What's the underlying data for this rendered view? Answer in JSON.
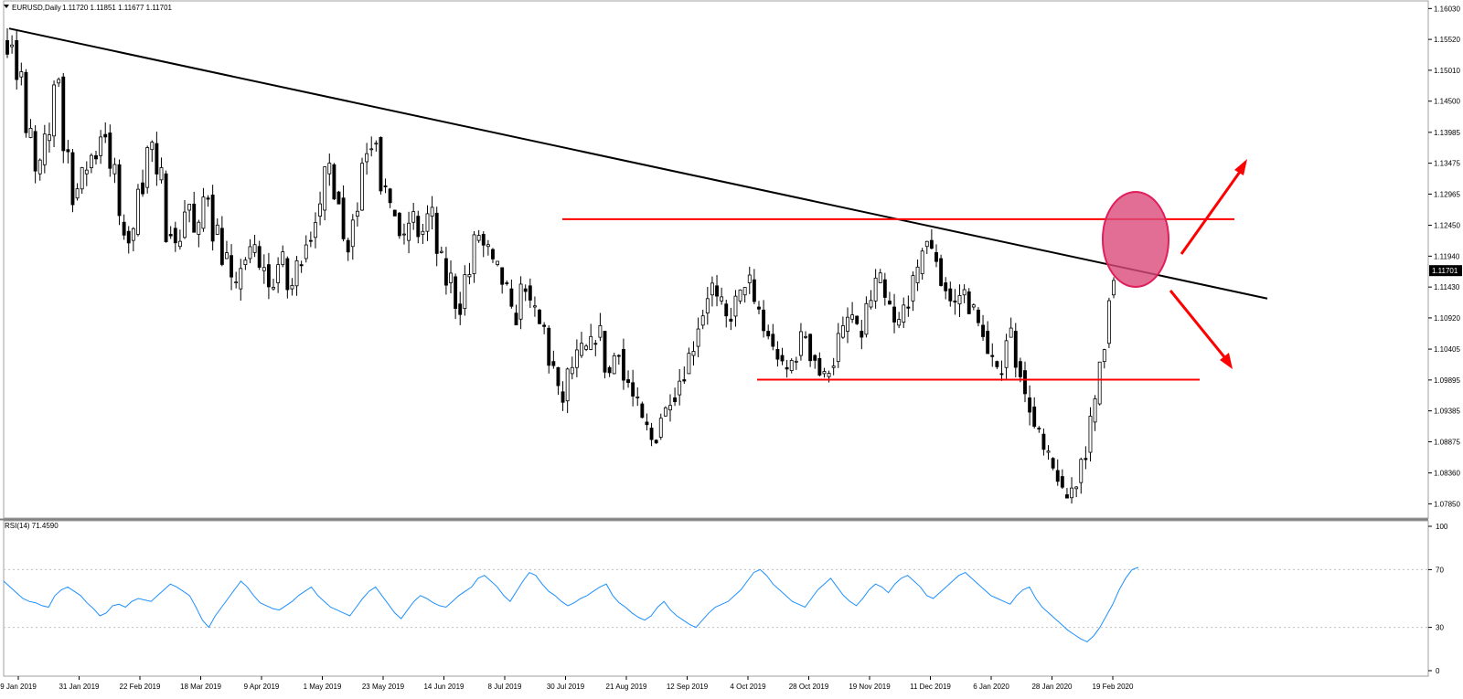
{
  "header": {
    "symbol": "EURUSD,Daily",
    "ohlc": "1.11720 1.11851 1.11677 1.11701"
  },
  "rsi_header": "RSI(14) 71.4590",
  "current_price_label": "1.11701",
  "colors": {
    "bull_candle": "#ffffff",
    "bear_candle": "#000000",
    "trendline": "#000000",
    "horizontal_lines": "#ff0000",
    "highlight_ellipse": "#dc4a7a",
    "arrows": "#ff0000",
    "rsi_line": "#1e90ff",
    "rsi_levels": "#c0c0c0"
  },
  "chart_data": [
    {
      "type": "candlestick",
      "x_tick_labels": [
        "9 Jan 2019",
        "31 Jan 2019",
        "22 Feb 2019",
        "18 Mar 2019",
        "9 Apr 2019",
        "1 May 2019",
        "23 May 2019",
        "14 Jun 2019",
        "8 Jul 2019",
        "30 Jul 2019",
        "21 Aug 2019",
        "12 Sep 2019",
        "4 Oct 2019",
        "28 Oct 2019",
        "19 Nov 2019",
        "11 Dec 2019",
        "6 Jan 2020",
        "28 Jan 2020",
        "19 Feb 2020"
      ],
      "y_tick_labels": [
        "1.16030",
        "1.15520",
        "1.15010",
        "1.14500",
        "1.13985",
        "1.13475",
        "1.12965",
        "1.12450",
        "1.11940",
        "1.11430",
        "1.10920",
        "1.10405",
        "1.09895",
        "1.09385",
        "1.08875",
        "1.08360",
        "1.07850"
      ],
      "ylim": [
        1.0775,
        1.1608
      ],
      "close_path": [
        [
          1.154,
          1.156
        ],
        [
          1.149,
          1.1505
        ],
        [
          1.139,
          1.141
        ],
        [
          1.133,
          1.136
        ],
        [
          1.1385,
          1.14
        ],
        [
          1.148,
          1.15
        ],
        [
          1.137,
          1.136
        ],
        [
          1.129,
          1.132
        ],
        [
          1.133,
          1.135
        ],
        [
          1.136,
          1.136
        ],
        [
          1.1395,
          1.14
        ],
        [
          1.133,
          1.136
        ],
        [
          1.125,
          1.122
        ],
        [
          1.122,
          1.124
        ],
        [
          1.1315,
          1.13
        ],
        [
          1.137,
          1.139
        ],
        [
          1.132,
          1.134
        ],
        [
          1.123,
          1.125
        ],
        [
          1.121,
          1.124
        ],
        [
          1.127,
          1.129
        ],
        [
          1.123,
          1.125
        ],
        [
          1.129,
          1.13
        ],
        [
          1.123,
          1.125
        ],
        [
          1.119,
          1.12
        ],
        [
          1.115,
          1.113
        ],
        [
          1.118,
          1.12
        ],
        [
          1.12,
          1.122
        ],
        [
          1.117,
          1.119
        ],
        [
          1.114,
          1.116
        ],
        [
          1.118,
          1.12
        ],
        [
          1.114,
          1.115
        ],
        [
          1.118,
          1.12
        ],
        [
          1.122,
          1.123
        ],
        [
          1.126,
          1.128
        ],
        [
          1.133,
          1.136
        ],
        [
          1.13,
          1.128
        ],
        [
          1.122,
          1.12
        ],
        [
          1.126,
          1.128
        ],
        [
          1.135,
          1.139
        ],
        [
          1.138,
          1.14
        ],
        [
          1.131,
          1.13
        ],
        [
          1.127,
          1.126
        ],
        [
          1.123,
          1.121
        ],
        [
          1.125,
          1.127
        ],
        [
          1.123,
          1.124
        ],
        [
          1.126,
          1.127
        ],
        [
          1.12,
          1.118
        ],
        [
          1.115,
          1.117
        ],
        [
          1.1115,
          1.11
        ],
        [
          1.116,
          1.117
        ],
        [
          1.122,
          1.124
        ],
        [
          1.121,
          1.12
        ],
        [
          1.118,
          1.117
        ],
        [
          1.115,
          1.113
        ],
        [
          1.11,
          1.108
        ],
        [
          1.114,
          1.115
        ],
        [
          1.111,
          1.11
        ],
        [
          1.108,
          1.107
        ],
        [
          1.102,
          1.1
        ],
        [
          1.097,
          1.094
        ],
        [
          1.1,
          1.102
        ],
        [
          1.103,
          1.105
        ],
        [
          1.104,
          1.106
        ],
        [
          1.106,
          1.108
        ],
        [
          1.101,
          1.099
        ],
        [
          1.103,
          1.105
        ],
        [
          1.099,
          1.098
        ],
        [
          1.096,
          1.094
        ],
        [
          1.092,
          1.09
        ],
        [
          1.089,
          1.09
        ],
        [
          1.093,
          1.095
        ],
        [
          1.096,
          1.097
        ],
        [
          1.099,
          1.101
        ],
        [
          1.103,
          1.106
        ],
        [
          1.108,
          1.112
        ],
        [
          1.113,
          1.116
        ],
        [
          1.112,
          1.111
        ],
        [
          1.109,
          1.11
        ],
        [
          1.112,
          1.114
        ],
        [
          1.115,
          1.116
        ],
        [
          1.111,
          1.11
        ],
        [
          1.107,
          1.106
        ],
        [
          1.104,
          1.102
        ],
        [
          1.101,
          1.1
        ],
        [
          1.102,
          1.104
        ],
        [
          1.106,
          1.107
        ],
        [
          1.103,
          1.102
        ],
        [
          1.1,
          1.099
        ],
        [
          1.101,
          1.103
        ],
        [
          1.106,
          1.108
        ],
        [
          1.109,
          1.11
        ],
        [
          1.107,
          1.106
        ],
        [
          1.111,
          1.113
        ],
        [
          1.115,
          1.116
        ],
        [
          1.112,
          1.11
        ],
        [
          1.108,
          1.109
        ],
        [
          1.111,
          1.113
        ],
        [
          1.115,
          1.118
        ],
        [
          1.121,
          1.123
        ],
        [
          1.12,
          1.118
        ],
        [
          1.115,
          1.113
        ],
        [
          1.112,
          1.111
        ],
        [
          1.113,
          1.114
        ],
        [
          1.111,
          1.11
        ],
        [
          1.108,
          1.106
        ],
        [
          1.103,
          1.101
        ],
        [
          1.1,
          1.102
        ],
        [
          1.106,
          1.108
        ],
        [
          1.102,
          1.099
        ],
        [
          1.096,
          1.093
        ],
        [
          1.091,
          1.089
        ],
        [
          1.087,
          1.085
        ],
        [
          1.084,
          1.082
        ],
        [
          1.08,
          1.079
        ],
        [
          1.081,
          1.083
        ],
        [
          1.086,
          1.088
        ],
        [
          1.092,
          1.098
        ],
        [
          1.102,
          1.108
        ],
        [
          1.113,
          1.117
        ]
      ],
      "trendline": {
        "from": [
          "9 Jan 2019",
          1.157
        ],
        "to": [
          "end",
          1.1124
        ]
      },
      "resistance_line": {
        "value": 1.1255,
        "from": "30 Jul 2019",
        "to": "end"
      },
      "support_line": {
        "value": 1.099,
        "from": "4 Oct 2019",
        "to": "end"
      }
    },
    {
      "type": "line",
      "title": "RSI(14) 71.4590",
      "y_tick_labels": [
        "100",
        "70",
        "30",
        "0"
      ],
      "ylim": [
        0,
        100
      ],
      "levels": [
        70,
        30
      ],
      "series": [
        {
          "values": [
            62,
            58,
            54,
            50,
            48,
            47,
            45,
            44,
            52,
            56,
            58,
            55,
            52,
            47,
            43,
            38,
            40,
            45,
            46,
            44,
            48,
            50,
            49,
            48,
            52,
            56,
            60,
            58,
            55,
            52,
            44,
            35,
            30,
            38,
            44,
            50,
            56,
            62,
            58,
            52,
            47,
            45,
            43,
            42,
            45,
            48,
            52,
            55,
            58,
            52,
            48,
            44,
            42,
            40,
            38,
            44,
            50,
            55,
            58,
            52,
            46,
            40,
            36,
            42,
            48,
            52,
            50,
            47,
            45,
            44,
            48,
            52,
            55,
            58,
            64,
            66,
            62,
            58,
            52,
            48,
            55,
            62,
            68,
            66,
            60,
            55,
            52,
            48,
            45,
            47,
            50,
            52,
            55,
            58,
            60,
            52,
            47,
            44,
            40,
            37,
            35,
            38,
            44,
            48,
            42,
            38,
            35,
            32,
            30,
            35,
            40,
            44,
            46,
            48,
            52,
            56,
            62,
            68,
            70,
            66,
            60,
            56,
            52,
            48,
            46,
            44,
            50,
            56,
            60,
            64,
            58,
            52,
            48,
            45,
            50,
            56,
            60,
            58,
            54,
            60,
            64,
            66,
            62,
            58,
            52,
            50,
            54,
            58,
            62,
            66,
            68,
            64,
            60,
            56,
            52,
            50,
            48,
            46,
            52,
            56,
            58,
            50,
            44,
            40,
            36,
            32,
            28,
            25,
            22,
            20,
            24,
            30,
            38,
            46,
            56,
            64,
            70,
            71.5
          ]
        }
      ]
    }
  ],
  "annotations": {
    "arrow_up": "up",
    "arrow_down": "down"
  }
}
